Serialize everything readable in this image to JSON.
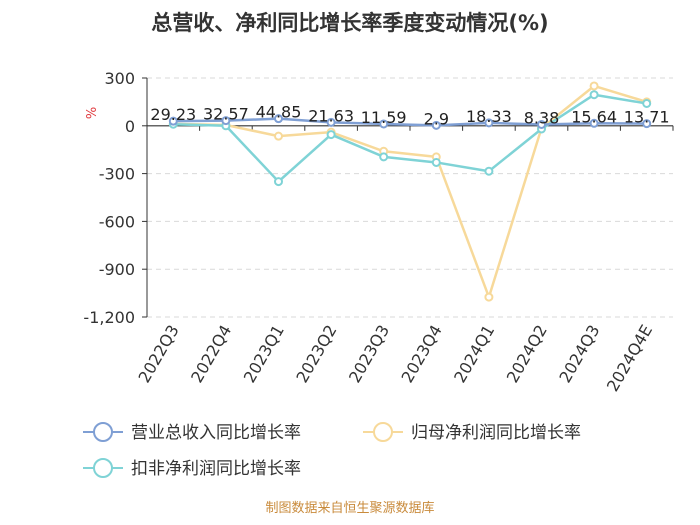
{
  "title": "总营收、净利同比增长率季度变动情况(%)",
  "source": "制图数据来自恒生聚源数据库",
  "colors": {
    "revenue": "#7f9fd4",
    "net_profit": "#f7d99a",
    "deducted": "#7fd3d6",
    "grid": "#d9d9d9",
    "axis": "#333333",
    "unit": "#e0393e",
    "source": "#c98b3c"
  },
  "chart_data": {
    "type": "line",
    "title": "总营收、净利同比增长率季度变动情况(%)",
    "ylabel": "%",
    "ylim": [
      -1200,
      300
    ],
    "yticks": [
      300,
      0,
      -300,
      -600,
      -900,
      -1200
    ],
    "ytick_labels": [
      "300",
      "0",
      "-300",
      "-600",
      "-900",
      "-1,200"
    ],
    "grid": true,
    "legend_position": "bottom",
    "categories": [
      "2022Q3",
      "2022Q4",
      "2023Q1",
      "2023Q2",
      "2023Q3",
      "2023Q4",
      "2024Q1",
      "2024Q2",
      "2024Q3",
      "2024Q4E"
    ],
    "series": [
      {
        "name": "营业总收入同比增长率",
        "color_key": "revenue",
        "values": [
          29.23,
          32.57,
          44.85,
          21.63,
          11.59,
          2.9,
          18.33,
          8.38,
          15.64,
          13.71
        ],
        "labels": [
          "29.23",
          "32.57",
          "44.85",
          "21.63",
          "11.59",
          "2.9",
          "18.33",
          "8.38",
          "15.64",
          "13.71"
        ]
      },
      {
        "name": "归母净利润同比增长率",
        "color_key": "net_profit",
        "values": [
          12,
          5,
          -65,
          -40,
          -160,
          -195,
          -1075,
          -15,
          250,
          150
        ]
      },
      {
        "name": "扣非净利润同比增长率",
        "color_key": "deducted",
        "values": [
          10,
          0,
          -350,
          -55,
          -195,
          -230,
          -285,
          -20,
          195,
          140
        ]
      }
    ]
  }
}
